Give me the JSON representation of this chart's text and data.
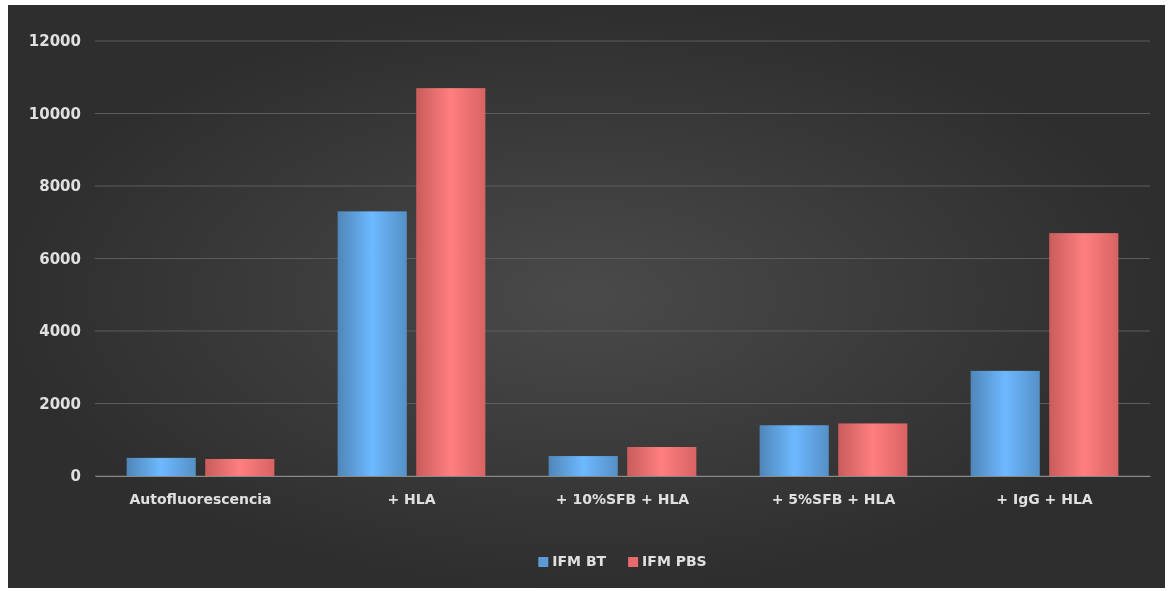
{
  "chart_data": {
    "type": "bar",
    "categories": [
      "Autofluorescencia",
      "+ HLA",
      "+ 10%SFB + HLA",
      "+ 5%SFB + HLA",
      "+ IgG + HLA"
    ],
    "series": [
      {
        "name": "IFM BT",
        "color": "#5b9bd5",
        "values": [
          500,
          7300,
          550,
          1400,
          2900
        ]
      },
      {
        "name": "IFM PBS",
        "color": "#e86a6a",
        "values": [
          470,
          10700,
          800,
          1450,
          6700
        ]
      }
    ],
    "ylim": [
      0,
      12000
    ],
    "yticks": [
      0,
      2000,
      4000,
      6000,
      8000,
      10000,
      12000
    ],
    "grid": "y",
    "legend": "bottom"
  }
}
